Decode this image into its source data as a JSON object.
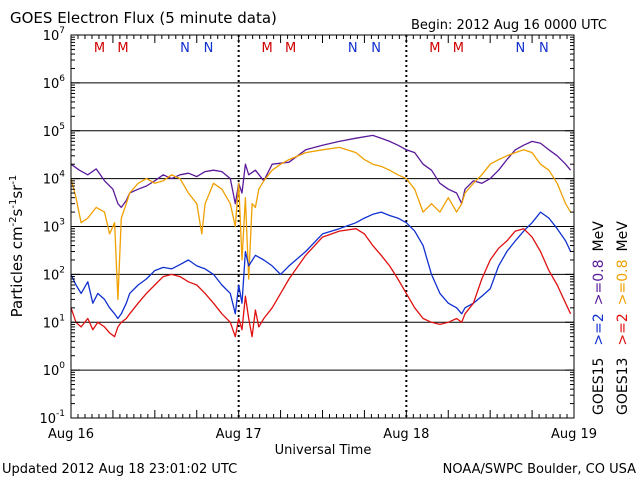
{
  "title": "GOES Electron Flux (5 minute data)",
  "begin_label": "Begin: 2012 Aug 16 0000 UTC",
  "updated_label": "Updated 2012 Aug 18 23:01:02 UTC",
  "credit_label": "NOAA/SWPC Boulder, CO USA",
  "colors": {
    "goes15_ge08": "#5a1a9a",
    "goes13_ge08": "#f0a000",
    "goes15_ge2": "#1030d0",
    "goes13_ge2": "#e01010",
    "m_marker": "#d00000",
    "n_marker": "#1030d0"
  },
  "chart_data": {
    "type": "line",
    "title": "GOES Electron Flux (5 minute data)",
    "xlabel": "Universal Time",
    "ylabel_base": "Particles cm",
    "ylabel_sup1": "-2",
    "ylabel_mid1": "s",
    "ylabel_sup2": "-1",
    "ylabel_mid2": "sr",
    "ylabel_sup3": "-1",
    "yscale": "log",
    "ylim_exponent": [
      -1,
      7
    ],
    "xlim_days": [
      0,
      3
    ],
    "x_tick_labels": [
      "Aug 16",
      "Aug 17",
      "Aug 18",
      "Aug 19"
    ],
    "y_tick_labels": [
      {
        "base": "10",
        "exp": "-1"
      },
      {
        "base": "10",
        "exp": "0"
      },
      {
        "base": "10",
        "exp": "1"
      },
      {
        "base": "10",
        "exp": "2"
      },
      {
        "base": "10",
        "exp": "3"
      },
      {
        "base": "10",
        "exp": "4"
      },
      {
        "base": "10",
        "exp": "5"
      },
      {
        "base": "10",
        "exp": "6"
      },
      {
        "base": "10",
        "exp": "7"
      }
    ],
    "threshold_line": 1000,
    "legend": {
      "placement": "right",
      "goes15_label": "GOES15",
      "goes13_label": "GOES13",
      "goes15_ge2": ">=2",
      "goes15_ge08": ">=0.8",
      "goes13_ge2": ">=2",
      "goes13_ge08": ">=0.8",
      "unit": "MeV"
    },
    "markers": [
      {
        "label": "M",
        "t": 0.17
      },
      {
        "label": "M",
        "t": 0.31
      },
      {
        "label": "N",
        "t": 0.68
      },
      {
        "label": "N",
        "t": 0.82
      },
      {
        "label": "M",
        "t": 1.17
      },
      {
        "label": "M",
        "t": 1.31
      },
      {
        "label": "N",
        "t": 1.68
      },
      {
        "label": "N",
        "t": 1.82
      },
      {
        "label": "M",
        "t": 2.17
      },
      {
        "label": "M",
        "t": 2.31
      },
      {
        "label": "N",
        "t": 2.68
      },
      {
        "label": "N",
        "t": 2.82
      }
    ],
    "series": [
      {
        "name": "GOES15 >=0.8 MeV",
        "color": "#5a1a9a",
        "t": [
          0.0,
          0.05,
          0.1,
          0.15,
          0.2,
          0.25,
          0.28,
          0.3,
          0.33,
          0.35,
          0.4,
          0.45,
          0.5,
          0.55,
          0.6,
          0.65,
          0.7,
          0.75,
          0.8,
          0.85,
          0.9,
          0.95,
          0.98,
          1.0,
          1.02,
          1.04,
          1.06,
          1.1,
          1.15,
          1.2,
          1.3,
          1.4,
          1.5,
          1.6,
          1.7,
          1.8,
          1.85,
          1.9,
          1.95,
          2.0,
          2.05,
          2.1,
          2.15,
          2.2,
          2.25,
          2.3,
          2.33,
          2.35,
          2.4,
          2.45,
          2.5,
          2.55,
          2.6,
          2.65,
          2.7,
          2.75,
          2.8,
          2.85,
          2.9,
          2.95,
          2.98
        ],
        "v": [
          20000,
          15000,
          12000,
          16000,
          9000,
          6000,
          3000,
          2500,
          3500,
          5000,
          6000,
          7000,
          9000,
          12000,
          10000,
          12000,
          13000,
          11000,
          14000,
          15000,
          14000,
          10000,
          3000,
          8000,
          5000,
          20000,
          12000,
          15000,
          9000,
          20000,
          22000,
          40000,
          50000,
          60000,
          70000,
          80000,
          70000,
          60000,
          50000,
          40000,
          35000,
          20000,
          15000,
          8000,
          6000,
          5000,
          3000,
          6000,
          9000,
          8000,
          10000,
          15000,
          25000,
          40000,
          50000,
          60000,
          55000,
          40000,
          30000,
          20000,
          15000
        ]
      },
      {
        "name": "GOES13 >=0.8 MeV",
        "color": "#f0a000",
        "t": [
          0.0,
          0.03,
          0.06,
          0.1,
          0.15,
          0.2,
          0.23,
          0.26,
          0.28,
          0.3,
          0.33,
          0.35,
          0.4,
          0.45,
          0.5,
          0.55,
          0.6,
          0.65,
          0.7,
          0.75,
          0.78,
          0.8,
          0.85,
          0.9,
          0.95,
          0.98,
          1.0,
          1.02,
          1.04,
          1.06,
          1.08,
          1.1,
          1.12,
          1.15,
          1.2,
          1.25,
          1.3,
          1.4,
          1.5,
          1.6,
          1.7,
          1.75,
          1.8,
          1.85,
          1.9,
          1.95,
          2.0,
          2.05,
          2.1,
          2.15,
          2.2,
          2.25,
          2.3,
          2.33,
          2.35,
          2.4,
          2.45,
          2.5,
          2.55,
          2.6,
          2.65,
          2.7,
          2.75,
          2.8,
          2.85,
          2.9,
          2.95,
          2.98
        ],
        "v": [
          10000,
          4000,
          1200,
          1500,
          2500,
          2000,
          700,
          1200,
          30,
          1500,
          3000,
          5000,
          8000,
          10000,
          8000,
          9000,
          12000,
          10000,
          5000,
          3000,
          700,
          3000,
          8000,
          6000,
          3000,
          1000,
          8000,
          200,
          4000,
          80,
          3000,
          2500,
          6000,
          9000,
          15000,
          20000,
          25000,
          35000,
          40000,
          45000,
          35000,
          25000,
          20000,
          18000,
          15000,
          12000,
          10000,
          6000,
          2000,
          3000,
          2000,
          4000,
          2000,
          3000,
          5000,
          8000,
          12000,
          20000,
          25000,
          30000,
          35000,
          40000,
          35000,
          20000,
          15000,
          8000,
          3000,
          2000
        ]
      },
      {
        "name": "GOES15 >=2 MeV",
        "color": "#1030d0",
        "t": [
          0.0,
          0.03,
          0.06,
          0.1,
          0.13,
          0.16,
          0.2,
          0.23,
          0.26,
          0.28,
          0.3,
          0.33,
          0.35,
          0.4,
          0.45,
          0.5,
          0.55,
          0.6,
          0.65,
          0.7,
          0.75,
          0.8,
          0.85,
          0.9,
          0.95,
          0.98,
          1.0,
          1.02,
          1.04,
          1.06,
          1.1,
          1.15,
          1.2,
          1.25,
          1.3,
          1.4,
          1.5,
          1.6,
          1.7,
          1.75,
          1.8,
          1.85,
          1.9,
          1.95,
          2.0,
          2.05,
          2.1,
          2.15,
          2.2,
          2.25,
          2.3,
          2.33,
          2.35,
          2.4,
          2.45,
          2.5,
          2.55,
          2.6,
          2.65,
          2.7,
          2.75,
          2.8,
          2.85,
          2.9,
          2.95,
          2.98
        ],
        "v": [
          100,
          60,
          40,
          70,
          25,
          40,
          30,
          20,
          15,
          12,
          15,
          25,
          40,
          60,
          80,
          120,
          140,
          130,
          160,
          200,
          150,
          130,
          100,
          60,
          40,
          15,
          60,
          25,
          300,
          150,
          250,
          200,
          150,
          100,
          150,
          300,
          700,
          900,
          1200,
          1500,
          1800,
          2000,
          1700,
          1500,
          1200,
          800,
          400,
          100,
          40,
          25,
          20,
          15,
          20,
          25,
          35,
          50,
          150,
          300,
          500,
          800,
          1200,
          2000,
          1500,
          900,
          500,
          300
        ]
      },
      {
        "name": "GOES13 >=2 MeV",
        "color": "#e01010",
        "t": [
          0.0,
          0.03,
          0.06,
          0.1,
          0.13,
          0.16,
          0.2,
          0.23,
          0.26,
          0.28,
          0.3,
          0.33,
          0.35,
          0.4,
          0.45,
          0.5,
          0.55,
          0.6,
          0.65,
          0.7,
          0.75,
          0.8,
          0.85,
          0.9,
          0.95,
          0.98,
          1.0,
          1.02,
          1.04,
          1.06,
          1.08,
          1.1,
          1.12,
          1.15,
          1.2,
          1.25,
          1.3,
          1.4,
          1.5,
          1.6,
          1.7,
          1.75,
          1.8,
          1.85,
          1.9,
          1.95,
          2.0,
          2.05,
          2.1,
          2.15,
          2.2,
          2.25,
          2.3,
          2.33,
          2.35,
          2.4,
          2.45,
          2.5,
          2.55,
          2.6,
          2.65,
          2.7,
          2.75,
          2.8,
          2.85,
          2.9,
          2.95,
          2.98
        ],
        "v": [
          20,
          10,
          8,
          12,
          7,
          10,
          8,
          6,
          5,
          8,
          10,
          12,
          15,
          25,
          40,
          60,
          90,
          100,
          90,
          70,
          60,
          40,
          25,
          15,
          10,
          5,
          12,
          7,
          35,
          12,
          5,
          18,
          8,
          12,
          20,
          40,
          80,
          250,
          600,
          800,
          900,
          700,
          400,
          250,
          150,
          80,
          40,
          20,
          12,
          10,
          9,
          10,
          12,
          10,
          15,
          25,
          80,
          200,
          350,
          500,
          800,
          900,
          600,
          300,
          120,
          60,
          25,
          15
        ]
      }
    ]
  }
}
